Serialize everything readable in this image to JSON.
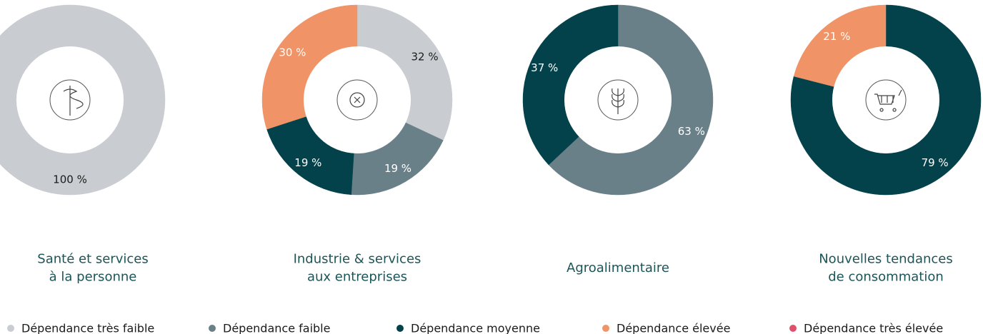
{
  "legend": [
    {
      "name": "Dépendance très faible",
      "color": "#c9cdd1"
    },
    {
      "name": "Dépendance faible",
      "color": "#6a8089"
    },
    {
      "name": "Dépendance moyenne",
      "color": "#03424b"
    },
    {
      "name": "Dépendance élevée",
      "color": "#f09366"
    },
    {
      "name": "Dépendance très élevée",
      "color": "#e0506a"
    }
  ],
  "chart_data": [
    {
      "type": "pie",
      "title": [
        "Santé et services",
        "à la personne"
      ],
      "categories": [
        "Dépendance très faible"
      ],
      "values": [
        100
      ],
      "value_labels": [
        "100 %"
      ],
      "colors": [
        "#c9cdd1"
      ]
    },
    {
      "type": "pie",
      "title": [
        "Industrie & services",
        "aux entreprises"
      ],
      "categories": [
        "Dépendance très faible",
        "Dépendance faible",
        "Dépendance moyenne",
        "Dépendance élevée"
      ],
      "values": [
        32,
        19,
        19,
        30
      ],
      "value_labels": [
        "32 %",
        "19 %",
        "19 %",
        "30 %"
      ],
      "colors": [
        "#c9cdd1",
        "#6a8089",
        "#03424b",
        "#f09366"
      ]
    },
    {
      "type": "pie",
      "title": [
        "Agroalimentaire"
      ],
      "categories": [
        "Dépendance faible",
        "Dépendance moyenne"
      ],
      "values": [
        63,
        37
      ],
      "value_labels": [
        "63 %",
        "37 %"
      ],
      "colors": [
        "#6a8089",
        "#03424b"
      ]
    },
    {
      "type": "pie",
      "title": [
        "Nouvelles tendances",
        "de consommation"
      ],
      "categories": [
        "Dépendance moyenne",
        "Dépendance élevée"
      ],
      "values": [
        79,
        21
      ],
      "value_labels": [
        "79 %",
        "21 %"
      ],
      "colors": [
        "#03424b",
        "#f09366"
      ]
    }
  ]
}
